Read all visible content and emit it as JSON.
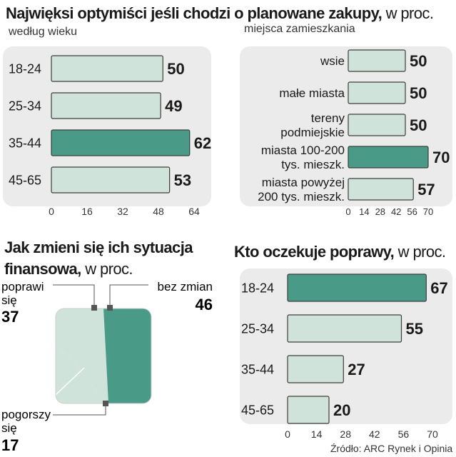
{
  "header": {
    "title": "Najwięksi optymiści jeśli chodzi o planowane zakupy,",
    "unit": "w proc."
  },
  "colors": {
    "panel": "#ebebeb",
    "bar": "#cfe3da",
    "bar_highlight": "#4a9a88",
    "bar_stroke": "#3d3d3d"
  },
  "chart_data": [
    {
      "type": "bar",
      "orientation": "horizontal",
      "title": "według wieku",
      "categories": [
        "18-24",
        "25-34",
        "35-44",
        "45-65"
      ],
      "values": [
        50,
        49,
        62,
        53
      ],
      "highlight_index": 2,
      "xlim": [
        0,
        64
      ],
      "ticks": [
        0,
        16,
        32,
        48,
        64
      ]
    },
    {
      "type": "bar",
      "orientation": "horizontal",
      "title": "miejsca zamieszkania",
      "categories": [
        [
          "wsie"
        ],
        [
          "małe miasta"
        ],
        [
          "tereny",
          "podmiejskie"
        ],
        [
          "miasta 100-200",
          "tys. mieszk."
        ],
        [
          "miasta powyżej",
          "200 tys. mieszk."
        ]
      ],
      "values": [
        50,
        50,
        50,
        70,
        57
      ],
      "highlight_index": 3,
      "xlim": [
        0,
        70
      ],
      "ticks": [
        0,
        14,
        28,
        42,
        56,
        70
      ]
    },
    {
      "type": "pie",
      "title": "Jak zmieni się ich sytuacja finansowa,",
      "title_line1": "Jak zmieni się ich sytuacja",
      "title_line2": "finansowa,",
      "unit": "w proc.",
      "slices": [
        {
          "label_line1": "poprawi",
          "label_line2": "się",
          "value": 37
        },
        {
          "label_line1": "bez zmian",
          "label_line2": "",
          "value": 46
        },
        {
          "label_line1": "pogorszy",
          "label_line2": "się",
          "value": 17
        }
      ]
    },
    {
      "type": "bar",
      "orientation": "horizontal",
      "title": "Kto oczekuje poprawy,",
      "unit": "w proc.",
      "categories": [
        "18-24",
        "25-34",
        "35-44",
        "45-65"
      ],
      "values": [
        67,
        55,
        27,
        20
      ],
      "highlight_index": 0,
      "xlim": [
        0,
        70
      ],
      "ticks": [
        0,
        14,
        28,
        42,
        56,
        70
      ]
    }
  ],
  "source": "Źródło: ARC Rynek i Opinia"
}
